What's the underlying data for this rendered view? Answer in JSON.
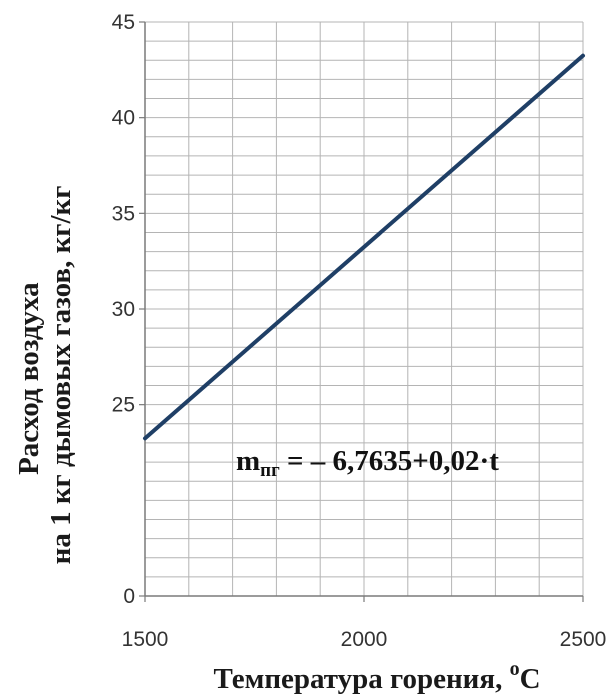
{
  "chart_data": {
    "type": "line",
    "title": "",
    "xlabel": "Температура горения, ",
    "xlabel_unit_sup": "o",
    "xlabel_unit": "C",
    "ylabel_line1": "Расход воздуха",
    "ylabel_line2": "на 1 кг дымовых газов, кг/кг",
    "xlim": [
      1500,
      2500
    ],
    "ylim_segments": [
      {
        "from": 0,
        "to": 20,
        "display_from": 0,
        "display_to": 1
      },
      {
        "from": 20,
        "to": 45,
        "display_from": 1,
        "display_to": 6
      }
    ],
    "x_ticks": [
      1500,
      2000,
      2500
    ],
    "x_tick_labels": [
      "1500",
      "2000",
      "2500"
    ],
    "y_ticks": [
      0,
      25,
      30,
      35,
      40,
      45
    ],
    "y_tick_labels": [
      "0",
      "25",
      "30",
      "35",
      "40",
      "45"
    ],
    "grid": true,
    "series": [
      {
        "x": [
          1500,
          2500
        ],
        "y": [
          23.24,
          43.24
        ]
      }
    ],
    "annotation": {
      "prefix": "m",
      "subscript": "пг",
      "text": " = – 6,7635+0,02·t"
    },
    "colors": {
      "line": "#1f3f66",
      "grid": "#b4b4b4",
      "axis": "#7a7a7a"
    }
  }
}
